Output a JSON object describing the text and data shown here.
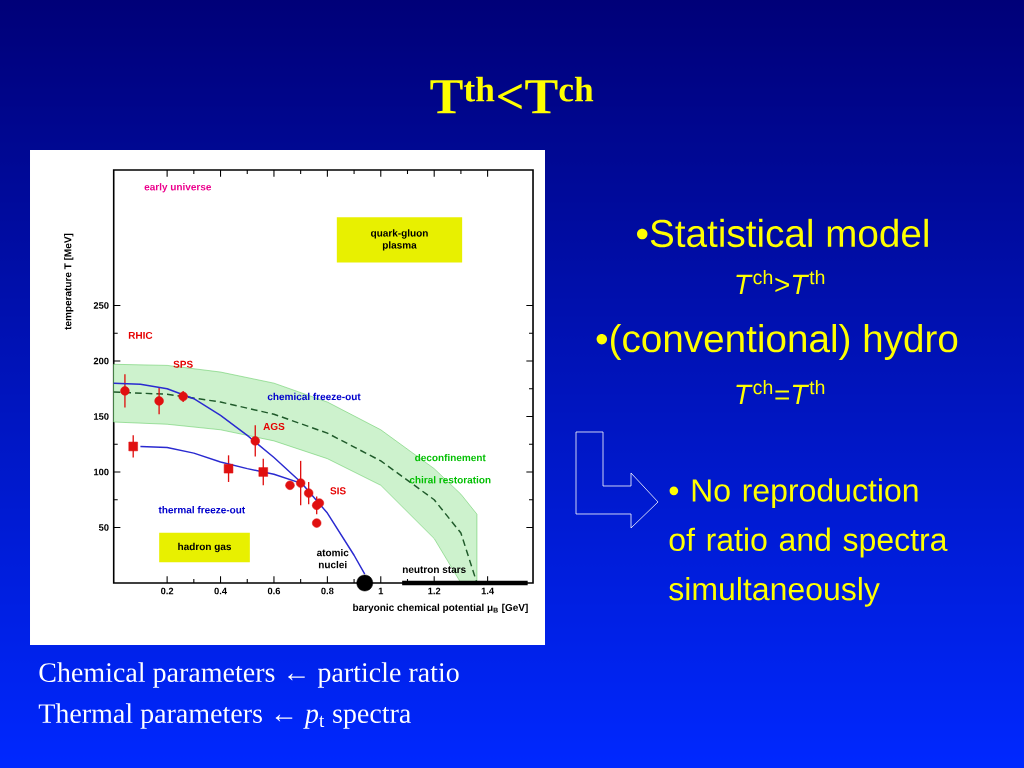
{
  "chart_data": {
    "type": "scatter",
    "title": "T$^{th}$<T$^{ch}$",
    "xlabel": "baryonic chemical potential μ$_{B}$ [GeV]",
    "ylabel": "temperature T [MeV]",
    "xlim": [
      0,
      1.57
    ],
    "ylim": [
      0,
      372
    ],
    "xticks": [
      0.2,
      0.4,
      0.6,
      0.8,
      1,
      1.2,
      1.4
    ],
    "yticks": [
      50,
      100,
      150,
      200,
      250
    ],
    "series": [
      {
        "type": "line",
        "line_style": "dashed",
        "color": "#1f5a2a",
        "x": [
          0,
          0.2,
          0.4,
          0.6,
          0.8,
          1.0,
          1.2,
          1.3,
          1.36
        ],
        "values": [
          172,
          170,
          163,
          152,
          135,
          110,
          75,
          45,
          0
        ],
        "lower": [
          145,
          143,
          138,
          128,
          112,
          88,
          40,
          0,
          0
        ],
        "upper": [
          197,
          196,
          190,
          180,
          163,
          138,
          103,
          80,
          62
        ]
      },
      {
        "marker": "circle",
        "color": "#e01010",
        "x": [
          0.042,
          0.17,
          0.26,
          0.53,
          0.66,
          0.7,
          0.73,
          0.76,
          0.77,
          0.76
        ],
        "values": [
          173,
          164,
          168,
          128,
          88,
          90,
          81,
          70,
          72,
          54
        ],
        "errors": [
          15,
          12,
          5,
          14,
          null,
          20,
          10,
          8,
          null,
          null
        ]
      },
      {
        "marker": "square",
        "color": "#e01010",
        "x": [
          0.073,
          0.43,
          0.56
        ],
        "values": [
          123,
          103,
          100
        ],
        "errors": [
          10,
          12,
          12
        ]
      },
      {
        "type": "line",
        "color": "#2a2ad0",
        "x": [
          0,
          0.1,
          0.2,
          0.3,
          0.4,
          0.5,
          0.6,
          0.7,
          0.8,
          0.9,
          0.94
        ],
        "values": [
          180,
          179,
          175,
          166,
          151,
          133,
          113,
          91,
          63,
          25,
          8
        ]
      },
      {
        "type": "line",
        "color": "#2a2ad0",
        "x": [
          0.1,
          0.2,
          0.3,
          0.4,
          0.5,
          0.6,
          0.7
        ],
        "values": [
          123,
          122,
          117,
          109,
          103,
          98,
          90
        ]
      },
      {
        "marker": "circle",
        "color": "#000000",
        "x": [
          0.94
        ],
        "values": [
          0
        ]
      },
      {
        "type": "line",
        "color": "#000000",
        "x": [
          1.08,
          1.55
        ],
        "values": [
          0,
          0
        ]
      }
    ],
    "annotations": [
      "early universe",
      "quark-gluon plasma",
      "RHIC",
      "SPS",
      "chemical freeze-out",
      "AGS",
      "deconfinement",
      "chiral restoration",
      "SIS",
      "thermal freeze-out",
      "hadron gas",
      "atomic nuclei",
      "neutron stars",
      "•Statistical model",
      "*T*$^{ch}$>*T*$^{th}$",
      "•(conventional) hydro",
      "*T*$^{ch}$=*T*$^{th}$",
      "• No reproduction of ratio and spectra simultaneously",
      "Chemical parameters ← particle ratio",
      "Thermal parameters ← *p*$_{t}$ spectra"
    ]
  }
}
